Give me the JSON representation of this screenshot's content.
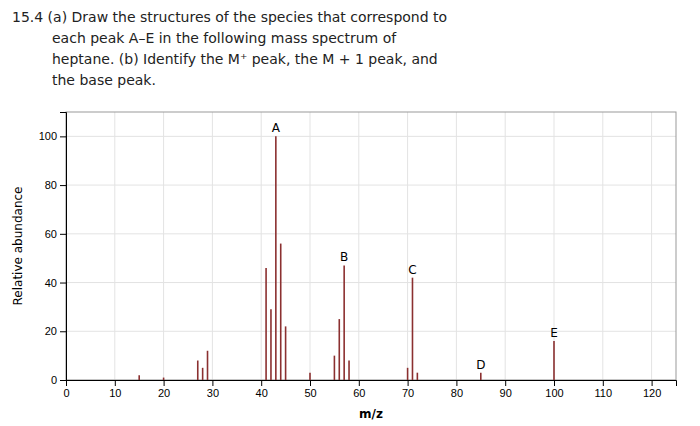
{
  "chart_data": {
    "type": "stem",
    "annotations": [
      "15.4 (a) Draw the structures of the species that correspond to",
      "each peak A–E in the following mass spectrum of",
      "heptane. (b) Identify the M⁺ peak, the M + 1 peak, and",
      "the base peak."
    ],
    "x_label": "m/z",
    "y_label": "Relative abundance",
    "x": [
      15,
      20,
      27,
      28,
      29,
      41,
      42,
      43,
      44,
      45,
      50,
      55,
      56,
      57,
      58,
      70,
      71,
      72,
      85,
      100
    ],
    "values": [
      2,
      1,
      8,
      5,
      12,
      46,
      29,
      100,
      56,
      22,
      3,
      10,
      25,
      47,
      8,
      5,
      42,
      3,
      3,
      16
    ],
    "labels": [
      null,
      null,
      null,
      null,
      null,
      null,
      null,
      "A",
      null,
      null,
      null,
      null,
      null,
      "B",
      null,
      null,
      "C",
      null,
      "D",
      "E"
    ],
    "color": "#8B3030",
    "xlim": [
      0,
      125
    ],
    "xticks": [
      0,
      10,
      20,
      30,
      40,
      50,
      60,
      70,
      80,
      90,
      100,
      110,
      120
    ],
    "ylim": [
      0,
      110
    ],
    "yticks": [
      0,
      20,
      40,
      60,
      80,
      100
    ],
    "grid": true
  }
}
